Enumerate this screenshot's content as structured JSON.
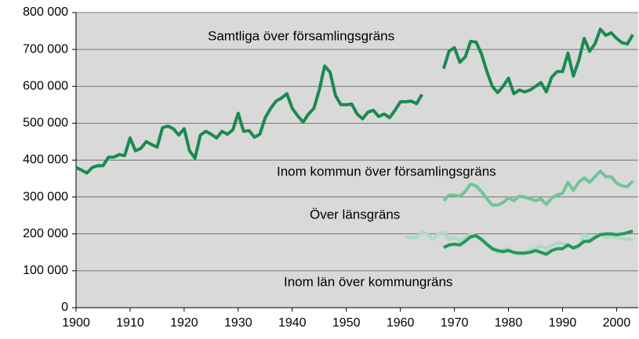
{
  "chart_data": {
    "type": "line",
    "x": [
      1900,
      1901,
      1902,
      1903,
      1904,
      1905,
      1906,
      1907,
      1908,
      1909,
      1910,
      1911,
      1912,
      1913,
      1914,
      1915,
      1916,
      1917,
      1918,
      1919,
      1920,
      1921,
      1922,
      1923,
      1924,
      1925,
      1926,
      1927,
      1928,
      1929,
      1930,
      1931,
      1932,
      1933,
      1934,
      1935,
      1936,
      1937,
      1938,
      1939,
      1940,
      1941,
      1942,
      1943,
      1944,
      1945,
      1946,
      1947,
      1948,
      1949,
      1950,
      1951,
      1952,
      1953,
      1954,
      1955,
      1956,
      1957,
      1958,
      1959,
      1960,
      1961,
      1962,
      1963,
      1964,
      1965,
      1966,
      1967,
      1968,
      1969,
      1970,
      1971,
      1972,
      1973,
      1974,
      1975,
      1976,
      1977,
      1978,
      1979,
      1980,
      1981,
      1982,
      1983,
      1984,
      1985,
      1986,
      1987,
      1988,
      1989,
      1990,
      1991,
      1992,
      1993,
      1994,
      1995,
      1996,
      1997,
      1998,
      1999,
      2000,
      2001,
      2002,
      2003
    ],
    "series": [
      {
        "name": "Samtliga över församlingsgräns",
        "color": "#1a8a50",
        "values": [
          380000,
          373000,
          365000,
          380000,
          385000,
          385000,
          408000,
          408000,
          415000,
          412000,
          460000,
          425000,
          432000,
          450000,
          442000,
          435000,
          488000,
          492000,
          485000,
          468000,
          485000,
          425000,
          405000,
          468000,
          478000,
          470000,
          460000,
          478000,
          470000,
          482000,
          527000,
          478000,
          480000,
          462000,
          470000,
          515000,
          540000,
          560000,
          568000,
          580000,
          540000,
          520000,
          503000,
          525000,
          540000,
          590000,
          655000,
          638000,
          575000,
          550000,
          550000,
          552000,
          525000,
          512000,
          530000,
          535000,
          518000,
          525000,
          515000,
          535000,
          558000,
          558000,
          560000,
          553000,
          578000,
          null,
          null,
          null,
          648000,
          695000,
          705000,
          665000,
          680000,
          722000,
          720000,
          688000,
          640000,
          600000,
          583000,
          600000,
          622000,
          580000,
          590000,
          585000,
          590000,
          600000,
          610000,
          585000,
          625000,
          640000,
          640000,
          690000,
          628000,
          670000,
          730000,
          695000,
          715000,
          755000,
          738000,
          745000,
          730000,
          718000,
          715000,
          740000
        ]
      },
      {
        "name": "Inom kommun över församlingsgräns",
        "color": "#72c49a",
        "values": [
          null,
          null,
          null,
          null,
          null,
          null,
          null,
          null,
          null,
          null,
          null,
          null,
          null,
          null,
          null,
          null,
          null,
          null,
          null,
          null,
          null,
          null,
          null,
          null,
          null,
          null,
          null,
          null,
          null,
          null,
          null,
          null,
          null,
          null,
          null,
          null,
          null,
          null,
          null,
          null,
          null,
          null,
          null,
          null,
          null,
          null,
          null,
          null,
          null,
          null,
          null,
          null,
          null,
          null,
          null,
          null,
          null,
          null,
          null,
          null,
          null,
          null,
          null,
          null,
          null,
          null,
          null,
          null,
          290000,
          305000,
          305000,
          302000,
          315000,
          335000,
          330000,
          315000,
          295000,
          278000,
          278000,
          285000,
          298000,
          290000,
          302000,
          300000,
          295000,
          290000,
          295000,
          280000,
          298000,
          305000,
          310000,
          340000,
          318000,
          340000,
          352000,
          340000,
          355000,
          370000,
          355000,
          355000,
          338000,
          330000,
          328000,
          343000
        ]
      },
      {
        "name": "Över länsgräns",
        "color": "#a9dcc1",
        "values": [
          null,
          null,
          null,
          null,
          null,
          null,
          null,
          null,
          null,
          null,
          null,
          null,
          null,
          null,
          null,
          null,
          null,
          null,
          null,
          null,
          null,
          null,
          null,
          null,
          null,
          null,
          null,
          null,
          null,
          null,
          null,
          null,
          null,
          null,
          null,
          null,
          null,
          null,
          null,
          null,
          null,
          null,
          null,
          null,
          null,
          null,
          null,
          null,
          null,
          null,
          null,
          null,
          null,
          null,
          null,
          null,
          null,
          null,
          null,
          null,
          null,
          192000,
          190000,
          190000,
          205000,
          200000,
          185000,
          200000,
          205000,
          185000,
          190000,
          182000,
          188000,
          200000,
          195000,
          182000,
          170000,
          157000,
          150000,
          158000,
          160000,
          148000,
          145000,
          148000,
          157000,
          160000,
          168000,
          160000,
          168000,
          175000,
          175000,
          170000,
          160000,
          165000,
          200000,
          185000,
          192000,
          200000,
          190000,
          192000,
          190000,
          188000,
          185000,
          185000
        ]
      },
      {
        "name": "Inom län över kommungräns",
        "color": "#24985a",
        "values": [
          null,
          null,
          null,
          null,
          null,
          null,
          null,
          null,
          null,
          null,
          null,
          null,
          null,
          null,
          null,
          null,
          null,
          null,
          null,
          null,
          null,
          null,
          null,
          null,
          null,
          null,
          null,
          null,
          null,
          null,
          null,
          null,
          null,
          null,
          null,
          null,
          null,
          null,
          null,
          null,
          null,
          null,
          null,
          null,
          null,
          null,
          null,
          null,
          null,
          null,
          null,
          null,
          null,
          null,
          null,
          null,
          null,
          null,
          null,
          null,
          null,
          null,
          null,
          null,
          null,
          null,
          null,
          null,
          163000,
          170000,
          172000,
          170000,
          180000,
          192000,
          195000,
          185000,
          172000,
          160000,
          155000,
          152000,
          155000,
          150000,
          148000,
          148000,
          150000,
          155000,
          150000,
          145000,
          155000,
          160000,
          160000,
          170000,
          162000,
          168000,
          180000,
          180000,
          190000,
          198000,
          200000,
          200000,
          198000,
          200000,
          203000,
          208000
        ]
      }
    ],
    "xlim": [
      1900,
      2004
    ],
    "xticks": [
      1900,
      1910,
      1920,
      1930,
      1940,
      1950,
      1960,
      1970,
      1980,
      1990,
      2000
    ],
    "ylim": [
      0,
      800000
    ],
    "yticks": [
      0,
      {
        "value": 100000,
        "label": "100 000"
      },
      {
        "value": 200000,
        "label": "200 000"
      },
      {
        "value": 300000,
        "label": "300 000"
      },
      {
        "value": 400000,
        "label": "400 000"
      },
      {
        "value": 500000,
        "label": "500 000"
      },
      {
        "value": 600000,
        "label": "600 000"
      },
      {
        "value": 700000,
        "label": "700 000"
      },
      {
        "value": 800000,
        "label": "800 000"
      }
    ],
    "grid": true,
    "plot_background": "#d9d9d9"
  }
}
